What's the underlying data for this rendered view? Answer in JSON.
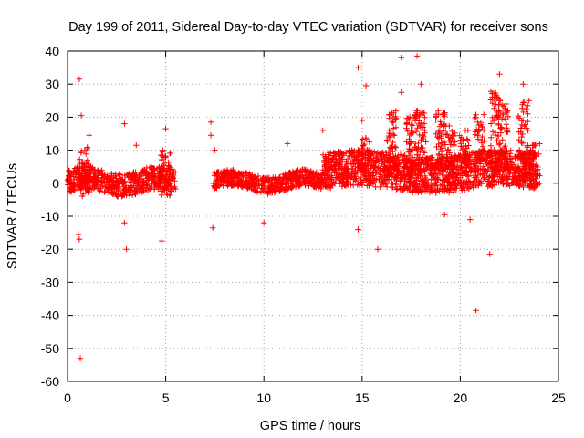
{
  "chart_data": {
    "type": "scatter",
    "title": "Day 199 of 2011, Sidereal Day-to-day VTEC variation (SDTVAR) for receiver sons",
    "xlabel": "GPS time / hours",
    "ylabel": "SDTVAR / TECUs",
    "xlim": [
      0,
      25
    ],
    "ylim": [
      -60,
      40
    ],
    "x_ticks": [
      0,
      5,
      10,
      15,
      20,
      25
    ],
    "y_ticks": [
      -60,
      -50,
      -40,
      -30,
      -20,
      -10,
      0,
      10,
      20,
      30,
      40
    ],
    "grid": true,
    "marker": "+",
    "series_color": "#ff0000",
    "series": [
      {
        "name": "SDTVAR",
        "bands": [
          {
            "x_start": 0.0,
            "x_end": 5.5,
            "y_low": -3,
            "y_high": 4,
            "density": 18
          },
          {
            "x_start": 7.4,
            "x_end": 13.0,
            "y_low": -2,
            "y_high": 3,
            "density": 16
          },
          {
            "x_start": 13.0,
            "x_end": 24.0,
            "y_low": -2,
            "y_high": 9,
            "density": 22
          }
        ],
        "spikes": [
          {
            "x": 0.8,
            "y_low": -4,
            "y_high": 12
          },
          {
            "x": 5.0,
            "y_low": -4,
            "y_high": 10
          },
          {
            "x": 15.2,
            "y_low": 0,
            "y_high": 14
          },
          {
            "x": 16.5,
            "y_low": 2,
            "y_high": 22
          },
          {
            "x": 17.5,
            "y_low": 3,
            "y_high": 21
          },
          {
            "x": 18.0,
            "y_low": 4,
            "y_high": 22
          },
          {
            "x": 19.0,
            "y_low": 4,
            "y_high": 22
          },
          {
            "x": 19.5,
            "y_low": 5,
            "y_high": 18
          },
          {
            "x": 20.2,
            "y_low": 6,
            "y_high": 16
          },
          {
            "x": 21.0,
            "y_low": 5,
            "y_high": 21
          },
          {
            "x": 21.8,
            "y_low": 3,
            "y_high": 28
          },
          {
            "x": 22.2,
            "y_low": 2,
            "y_high": 24
          },
          {
            "x": 23.2,
            "y_low": 0,
            "y_high": 25
          },
          {
            "x": 23.8,
            "y_low": -2,
            "y_high": 12
          }
        ],
        "outliers": [
          [
            0.6,
            31.5
          ],
          [
            0.7,
            20.5
          ],
          [
            0.55,
            -15.5
          ],
          [
            0.6,
            -17
          ],
          [
            0.65,
            -53
          ],
          [
            1.1,
            14.5
          ],
          [
            2.9,
            18
          ],
          [
            2.9,
            -12
          ],
          [
            3.0,
            -20
          ],
          [
            3.5,
            11.5
          ],
          [
            4.8,
            -17.5
          ],
          [
            5.0,
            16.5
          ],
          [
            7.3,
            18.5
          ],
          [
            7.3,
            14.5
          ],
          [
            7.4,
            -13.5
          ],
          [
            7.5,
            10
          ],
          [
            10.0,
            -12
          ],
          [
            11.2,
            12
          ],
          [
            13.0,
            16
          ],
          [
            14.8,
            35
          ],
          [
            15.0,
            19
          ],
          [
            15.2,
            29.5
          ],
          [
            14.8,
            -14
          ],
          [
            15.8,
            -20
          ],
          [
            17.0,
            38
          ],
          [
            17.8,
            38.5
          ],
          [
            17.0,
            27.5
          ],
          [
            18.0,
            30
          ],
          [
            19.2,
            -9.5
          ],
          [
            20.5,
            -11
          ],
          [
            20.8,
            -38.5
          ],
          [
            21.5,
            -21.5
          ],
          [
            22.0,
            33
          ],
          [
            23.2,
            30
          ],
          [
            23.5,
            25
          ]
        ]
      }
    ]
  }
}
